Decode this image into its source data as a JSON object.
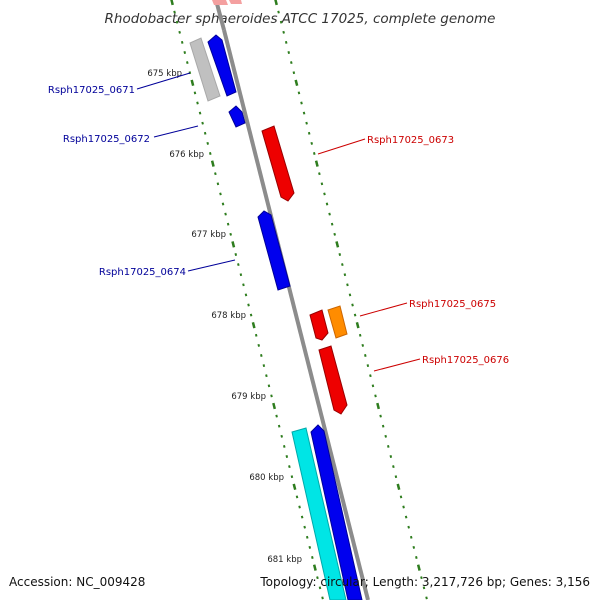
{
  "title": "Rhodobacter sphaeroides ATCC 17025, complete genome",
  "footer": {
    "accession": "Accession: NC_009428",
    "summary": "Topology: circular; Length: 3,217,726 bp; Genes: 3,156"
  },
  "colors": {
    "backbone": "#8c8c8c",
    "tick": "#2e7d1e",
    "forward_gene": "#0000ee",
    "reverse_gene": "#ee0000",
    "label_forward": "#000099",
    "label_reverse": "#cc0000",
    "rna_gene": "#ff8c00",
    "other_gene": "#00e5e5",
    "pseudo_gene": "#bbbbbb"
  },
  "kbp_labels": [
    "675 kbp",
    "676 kbp",
    "677 kbp",
    "678 kbp",
    "679 kbp",
    "680 kbp",
    "681 kbp"
  ],
  "gene_labels": [
    {
      "text": "Rsph17025_0671",
      "strand": "forward"
    },
    {
      "text": "Rsph17025_0672",
      "strand": "forward"
    },
    {
      "text": "Rsph17025_0673",
      "strand": "reverse"
    },
    {
      "text": "Rsph17025_0674",
      "strand": "forward"
    },
    {
      "text": "Rsph17025_0675",
      "strand": "reverse"
    },
    {
      "text": "Rsph17025_0676",
      "strand": "reverse"
    }
  ]
}
